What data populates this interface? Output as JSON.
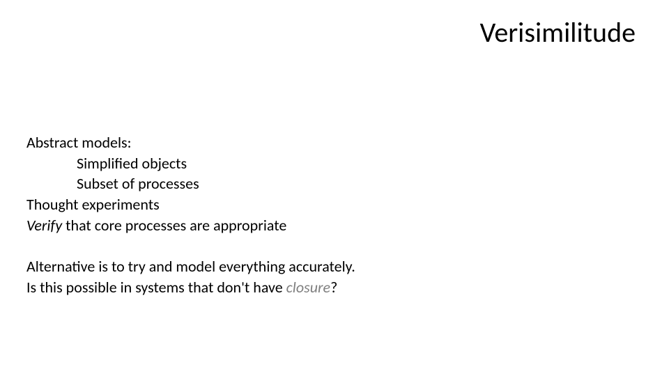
{
  "slide": {
    "title": "Verisimilitude",
    "background_color": "#ffffff",
    "title_color": "#000000",
    "title_fontsize": 40,
    "body_fontsize": 22,
    "body_color": "#000000",
    "italic_gray_color": "#808080",
    "block1": {
      "line1": "Abstract models:",
      "line2": "Simplified objects",
      "line3": "Subset of processes",
      "line4": "Thought experiments",
      "line5_italic": "Verify",
      "line5_rest": " that core processes are appropriate"
    },
    "block2": {
      "line1": "Alternative is to try and model everything accurately.",
      "line2_start": "Is this possible in systems that don't have ",
      "line2_italic": "closure",
      "line2_end": "?"
    }
  }
}
